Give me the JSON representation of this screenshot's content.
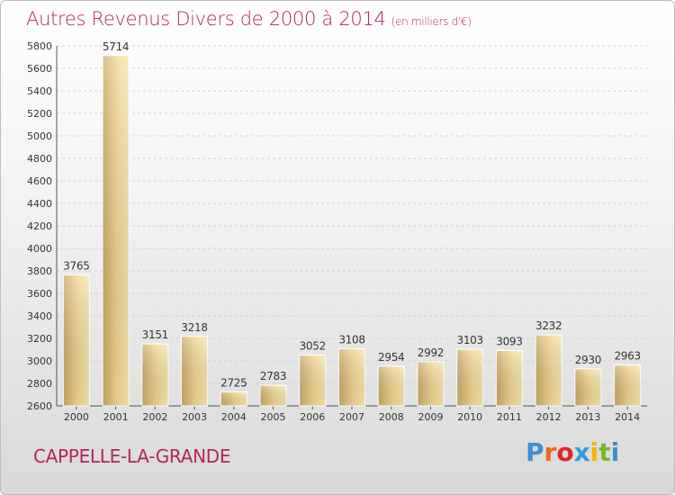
{
  "title": "Autres Revenus Divers de 2000 à 2014",
  "subtitle": "(en milliers d'€)",
  "location": "CAPPELLE-LA-GRANDE",
  "brand": "Proxiti",
  "colors": {
    "title": "#b5245c",
    "bar_light": "#f7e3a2",
    "bar_dark": "#c9a968"
  },
  "chart_data": {
    "type": "bar",
    "title": "Autres Revenus Divers de 2000 à 2014",
    "subtitle": "(en milliers d'€)",
    "categories": [
      "2000",
      "2001",
      "2002",
      "2003",
      "2004",
      "2005",
      "2006",
      "2007",
      "2008",
      "2009",
      "2010",
      "2011",
      "2012",
      "2013",
      "2014"
    ],
    "values": [
      3765,
      5714,
      3151,
      3218,
      2725,
      2783,
      3052,
      3108,
      2954,
      2992,
      3103,
      3093,
      3232,
      2930,
      2963
    ],
    "ylim": [
      2600,
      5800
    ],
    "yticks": [
      2600,
      2800,
      3000,
      3200,
      3400,
      3600,
      3800,
      4000,
      4200,
      4400,
      4600,
      4800,
      5000,
      5200,
      5400,
      5600,
      5800
    ],
    "grid": true,
    "xlabel": "",
    "ylabel": ""
  }
}
